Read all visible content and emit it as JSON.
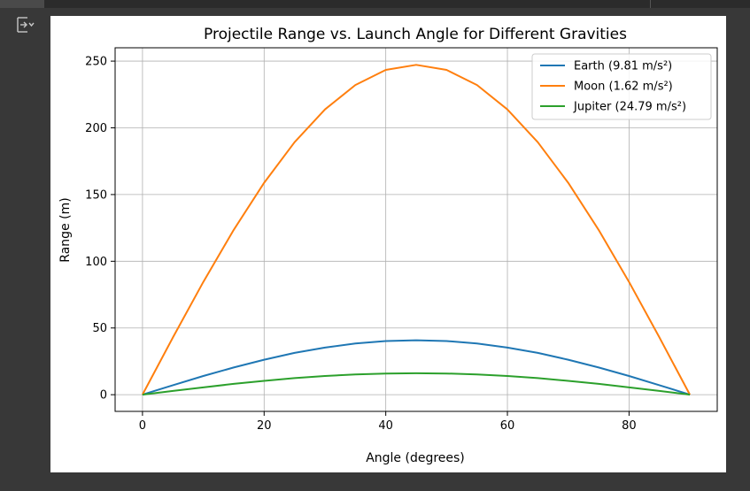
{
  "output_toggle_icon": "output-collapse-icon",
  "chart_data": {
    "type": "line",
    "title": "Projectile Range vs. Launch Angle for Different Gravities",
    "xlabel": "Angle (degrees)",
    "ylabel": "Range (m)",
    "xlim": [
      -4.5,
      94.5
    ],
    "ylim": [
      -12.5,
      260
    ],
    "xticks": [
      "0",
      "20",
      "40",
      "60",
      "80"
    ],
    "yticks": [
      "0",
      "50",
      "100",
      "150",
      "200",
      "250"
    ],
    "grid": true,
    "legend_position": "upper right",
    "series": [
      {
        "name": "Earth (9.81 m/s²)",
        "color": "#1f77b4",
        "x": [
          0,
          5,
          10,
          15,
          20,
          25,
          30,
          35,
          40,
          45,
          50,
          55,
          60,
          65,
          70,
          75,
          80,
          85,
          90
        ],
        "values": [
          0,
          7.1,
          14.0,
          20.4,
          26.2,
          31.3,
          35.3,
          38.4,
          40.2,
          40.8,
          40.2,
          38.4,
          35.3,
          31.3,
          26.2,
          20.4,
          14.0,
          7.1,
          0
        ]
      },
      {
        "name": "Moon (1.62 m/s²)",
        "color": "#ff7f0e",
        "x": [
          0,
          5,
          10,
          15,
          20,
          25,
          30,
          35,
          40,
          45,
          50,
          55,
          60,
          65,
          70,
          75,
          80,
          85,
          90
        ],
        "values": [
          0,
          42.9,
          84.5,
          123.5,
          158.8,
          189.2,
          213.8,
          232.1,
          243.4,
          247.2,
          243.4,
          232.1,
          213.8,
          189.2,
          158.8,
          123.5,
          84.5,
          42.9,
          0
        ]
      },
      {
        "name": "Jupiter (24.79 m/s²)",
        "color": "#2ca02c",
        "x": [
          0,
          5,
          10,
          15,
          20,
          25,
          30,
          35,
          40,
          45,
          50,
          55,
          60,
          65,
          70,
          75,
          80,
          85,
          90
        ],
        "values": [
          0,
          2.8,
          5.5,
          8.1,
          10.4,
          12.4,
          14.0,
          15.2,
          15.9,
          16.1,
          15.9,
          15.2,
          14.0,
          12.4,
          10.4,
          8.1,
          5.5,
          2.8,
          0
        ]
      }
    ]
  }
}
